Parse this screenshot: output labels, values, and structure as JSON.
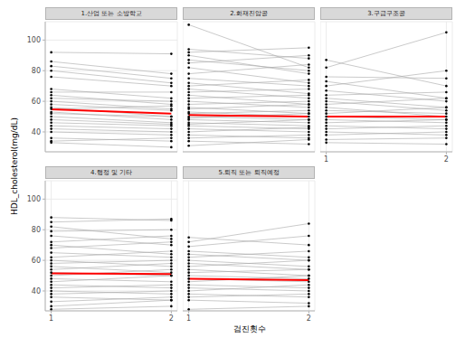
{
  "x_label": "검진횟수",
  "y_label": "HDL_cholesterol(mg/dL)",
  "chart_data": [
    {
      "type": "line",
      "title": "1.산업 또는 소방학교",
      "x": [
        1,
        2
      ],
      "xlim": [
        0.95,
        2.05
      ],
      "xticks": [
        1,
        2
      ],
      "ylim": [
        27,
        112
      ],
      "yticks": [
        40,
        60,
        80,
        100
      ],
      "grid": true,
      "color": "#a6a6a6",
      "marker": "circle",
      "tick_labels": "y",
      "series": [
        {
          "values": [
            92,
            91
          ]
        },
        {
          "values": [
            86,
            78
          ]
        },
        {
          "values": [
            83,
            75
          ]
        },
        {
          "values": [
            80,
            72
          ]
        },
        {
          "values": [
            76,
            70
          ]
        },
        {
          "values": [
            68,
            62
          ]
        },
        {
          "values": [
            66,
            66
          ]
        },
        {
          "values": [
            64,
            58
          ]
        },
        {
          "values": [
            62,
            60
          ]
        },
        {
          "values": [
            60,
            55
          ]
        },
        {
          "values": [
            58,
            54
          ]
        },
        {
          "values": [
            56,
            50
          ]
        },
        {
          "values": [
            55,
            57
          ]
        },
        {
          "values": [
            53,
            48
          ]
        },
        {
          "values": [
            52,
            50
          ]
        },
        {
          "values": [
            50,
            46
          ]
        },
        {
          "values": [
            48,
            45
          ]
        },
        {
          "values": [
            46,
            44
          ]
        },
        {
          "values": [
            44,
            42
          ]
        },
        {
          "values": [
            42,
            40
          ]
        },
        {
          "values": [
            40,
            38
          ]
        },
        {
          "values": [
            36,
            34
          ]
        },
        {
          "values": [
            34,
            36
          ]
        },
        {
          "values": [
            33,
            30
          ]
        },
        {
          "values": [
            54.8,
            52
          ],
          "color": "#ff0000",
          "marker": "none"
        }
      ]
    },
    {
      "type": "line",
      "title": "2.화재진압공",
      "x": [
        1,
        2
      ],
      "xlim": [
        0.95,
        2.05
      ],
      "xticks": [
        1,
        2
      ],
      "ylim": [
        27,
        112
      ],
      "yticks": [
        40,
        60,
        80,
        100
      ],
      "grid": true,
      "color": "#a6a6a6",
      "marker": "circle",
      "tick_labels": false,
      "series": [
        {
          "values": [
            110,
            82
          ]
        },
        {
          "values": [
            94,
            88
          ]
        },
        {
          "values": [
            92,
            95
          ]
        },
        {
          "values": [
            90,
            78
          ]
        },
        {
          "values": [
            87,
            80
          ]
        },
        {
          "values": [
            85,
            90
          ]
        },
        {
          "values": [
            82,
            72
          ]
        },
        {
          "values": [
            78,
            84
          ]
        },
        {
          "values": [
            75,
            70
          ]
        },
        {
          "values": [
            72,
            65
          ]
        },
        {
          "values": [
            70,
            74
          ]
        },
        {
          "values": [
            68,
            62
          ]
        },
        {
          "values": [
            66,
            68
          ]
        },
        {
          "values": [
            64,
            58
          ]
        },
        {
          "values": [
            62,
            64
          ]
        },
        {
          "values": [
            60,
            56
          ]
        },
        {
          "values": [
            58,
            60
          ]
        },
        {
          "values": [
            56,
            52
          ]
        },
        {
          "values": [
            55,
            58
          ]
        },
        {
          "values": [
            53,
            50
          ]
        },
        {
          "values": [
            52,
            54
          ]
        },
        {
          "values": [
            50,
            48
          ]
        },
        {
          "values": [
            49,
            52
          ]
        },
        {
          "values": [
            48,
            46
          ]
        },
        {
          "values": [
            46,
            44
          ]
        },
        {
          "values": [
            45,
            48
          ]
        },
        {
          "values": [
            44,
            42
          ]
        },
        {
          "values": [
            42,
            40
          ]
        },
        {
          "values": [
            40,
            43
          ]
        },
        {
          "values": [
            38,
            36
          ]
        },
        {
          "values": [
            36,
            38
          ]
        },
        {
          "values": [
            34,
            32
          ]
        },
        {
          "values": [
            31,
            35
          ]
        },
        {
          "values": [
            51,
            50
          ],
          "color": "#ff0000",
          "marker": "none"
        }
      ]
    },
    {
      "type": "line",
      "title": "3.구급구조공",
      "x": [
        1,
        2
      ],
      "xlim": [
        0.95,
        2.05
      ],
      "xticks": [
        1,
        2
      ],
      "ylim": [
        27,
        112
      ],
      "yticks": [
        40,
        60,
        80,
        100
      ],
      "grid": true,
      "color": "#a6a6a6",
      "marker": "circle",
      "tick_labels": "x",
      "series": [
        {
          "values": [
            87,
            70
          ]
        },
        {
          "values": [
            82,
            105
          ]
        },
        {
          "values": [
            76,
            75
          ]
        },
        {
          "values": [
            73,
            62
          ]
        },
        {
          "values": [
            70,
            80
          ]
        },
        {
          "values": [
            67,
            60
          ]
        },
        {
          "values": [
            64,
            66
          ]
        },
        {
          "values": [
            62,
            56
          ]
        },
        {
          "values": [
            60,
            54
          ]
        },
        {
          "values": [
            58,
            62
          ]
        },
        {
          "values": [
            56,
            50
          ]
        },
        {
          "values": [
            54,
            52
          ]
        },
        {
          "values": [
            52,
            56
          ]
        },
        {
          "values": [
            50,
            48
          ]
        },
        {
          "values": [
            48,
            46
          ]
        },
        {
          "values": [
            46,
            48
          ]
        },
        {
          "values": [
            44,
            42
          ]
        },
        {
          "values": [
            42,
            44
          ]
        },
        {
          "values": [
            40,
            38
          ]
        },
        {
          "values": [
            38,
            40
          ]
        },
        {
          "values": [
            35,
            36
          ]
        },
        {
          "values": [
            33,
            32
          ]
        },
        {
          "values": [
            50,
            50
          ],
          "color": "#ff0000",
          "marker": "none"
        }
      ]
    },
    {
      "type": "line",
      "title": "4.행정 및 기타",
      "x": [
        1,
        2
      ],
      "xlim": [
        0.95,
        2.05
      ],
      "xticks": [
        1,
        2
      ],
      "ylim": [
        27,
        112
      ],
      "yticks": [
        40,
        60,
        80,
        100
      ],
      "grid": true,
      "color": "#a6a6a6",
      "marker": "circle",
      "tick_labels": true,
      "series": [
        {
          "values": [
            88,
            86
          ]
        },
        {
          "values": [
            85,
            87
          ]
        },
        {
          "values": [
            82,
            74
          ]
        },
        {
          "values": [
            79,
            80
          ]
        },
        {
          "values": [
            76,
            70
          ]
        },
        {
          "values": [
            72,
            76
          ]
        },
        {
          "values": [
            70,
            64
          ]
        },
        {
          "values": [
            68,
            72
          ]
        },
        {
          "values": [
            65,
            62
          ]
        },
        {
          "values": [
            62,
            66
          ]
        },
        {
          "values": [
            60,
            56
          ]
        },
        {
          "values": [
            58,
            60
          ]
        },
        {
          "values": [
            56,
            52
          ]
        },
        {
          "values": [
            54,
            58
          ]
        },
        {
          "values": [
            52,
            50
          ]
        },
        {
          "values": [
            50,
            54
          ]
        },
        {
          "values": [
            48,
            46
          ]
        },
        {
          "values": [
            46,
            50
          ]
        },
        {
          "values": [
            44,
            42
          ]
        },
        {
          "values": [
            42,
            44
          ]
        },
        {
          "values": [
            40,
            38
          ]
        },
        {
          "values": [
            38,
            40
          ]
        },
        {
          "values": [
            36,
            34
          ]
        },
        {
          "values": [
            33,
            36
          ]
        },
        {
          "values": [
            30,
            34
          ]
        },
        {
          "values": [
            28,
            30
          ]
        },
        {
          "values": [
            51.5,
            51
          ],
          "color": "#ff0000",
          "marker": "none"
        }
      ]
    },
    {
      "type": "line",
      "title": "5.퇴직 또는 퇴직예정",
      "x": [
        1,
        2
      ],
      "xlim": [
        0.95,
        2.05
      ],
      "xticks": [
        1,
        2
      ],
      "ylim": [
        27,
        112
      ],
      "yticks": [
        40,
        60,
        80,
        100
      ],
      "grid": true,
      "color": "#a6a6a6",
      "marker": "circle",
      "tick_labels": "x",
      "series": [
        {
          "values": [
            75,
            70
          ]
        },
        {
          "values": [
            72,
            84
          ]
        },
        {
          "values": [
            69,
            76
          ]
        },
        {
          "values": [
            66,
            62
          ]
        },
        {
          "values": [
            64,
            60
          ]
        },
        {
          "values": [
            62,
            66
          ]
        },
        {
          "values": [
            60,
            56
          ]
        },
        {
          "values": [
            58,
            54
          ]
        },
        {
          "values": [
            56,
            60
          ]
        },
        {
          "values": [
            54,
            50
          ]
        },
        {
          "values": [
            52,
            54
          ]
        },
        {
          "values": [
            50,
            48
          ]
        },
        {
          "values": [
            48,
            46
          ]
        },
        {
          "values": [
            46,
            50
          ]
        },
        {
          "values": [
            44,
            42
          ]
        },
        {
          "values": [
            42,
            40
          ]
        },
        {
          "values": [
            40,
            44
          ]
        },
        {
          "values": [
            38,
            36
          ]
        },
        {
          "values": [
            36,
            38
          ]
        },
        {
          "values": [
            34,
            32
          ]
        },
        {
          "values": [
            28,
            30
          ]
        },
        {
          "values": [
            48,
            47
          ],
          "color": "#ff0000",
          "marker": "none"
        }
      ]
    }
  ]
}
